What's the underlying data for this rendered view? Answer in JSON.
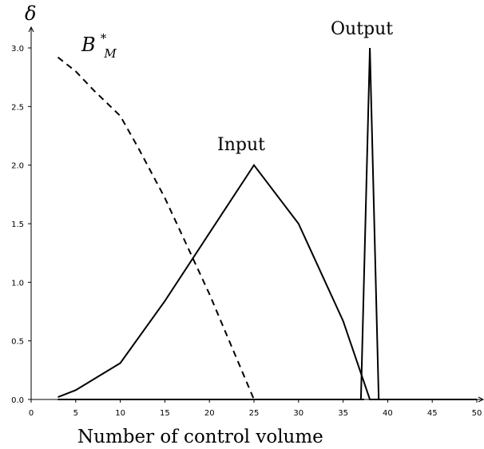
{
  "chart_data": {
    "type": "line",
    "title": "",
    "xlabel": "Number of control volume",
    "ylabel": "δ",
    "xlim": [
      0,
      50
    ],
    "ylim": [
      0,
      3.0
    ],
    "x_ticks": [
      "0",
      "5",
      "10",
      "15",
      "20",
      "25",
      "30",
      "35",
      "40",
      "45",
      "50"
    ],
    "y_ticks": [
      "0.0",
      "0.5",
      "1.0",
      "1.5",
      "2.0",
      "2.5",
      "3.0"
    ],
    "grid": false,
    "annotations": {
      "bm_base": "B",
      "bm_sup": "*",
      "bm_sub": "M",
      "input": "Input",
      "output": "Output"
    },
    "series": [
      {
        "key": "bm",
        "style": "dashed",
        "x": [
          3,
          5,
          7,
          10,
          12,
          15,
          20,
          25,
          30,
          35,
          40,
          45,
          50
        ],
        "y": [
          2.92,
          2.8,
          2.64,
          2.42,
          2.15,
          1.72,
          0.9,
          0.0,
          0.0,
          0.0,
          0.0,
          0.0,
          0.0
        ]
      },
      {
        "key": "input",
        "style": "solid",
        "x": [
          3,
          5,
          10,
          15,
          20,
          25,
          30,
          35,
          38,
          40,
          45,
          50
        ],
        "y": [
          0.02,
          0.08,
          0.31,
          0.84,
          1.42,
          2.0,
          1.5,
          0.67,
          0.0,
          0.0,
          0.0,
          0.0
        ]
      },
      {
        "key": "output",
        "style": "solid",
        "x": [
          3,
          37,
          38,
          39,
          50
        ],
        "y": [
          0.0,
          0.0,
          3.0,
          0.0,
          0.0
        ]
      }
    ]
  }
}
